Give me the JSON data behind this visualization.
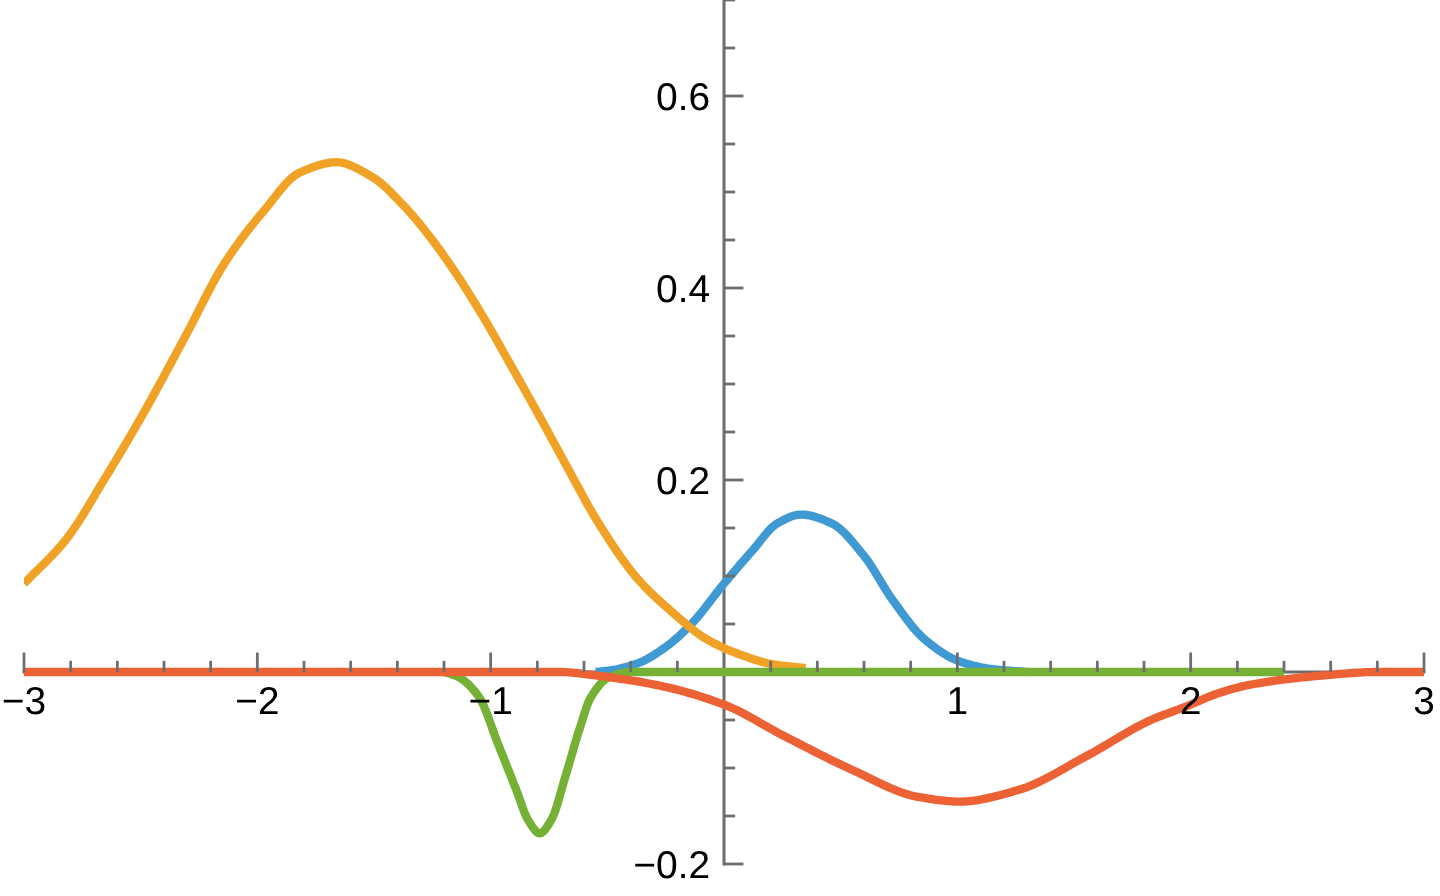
{
  "chart_data": {
    "type": "line",
    "xlim": [
      -3,
      3
    ],
    "ylim": [
      -0.2,
      0.7
    ],
    "xticks": [
      {
        "value": -3,
        "label": "−3"
      },
      {
        "value": -2.8,
        "label": null
      },
      {
        "value": -2.6,
        "label": null
      },
      {
        "value": -2.4,
        "label": null
      },
      {
        "value": -2.2,
        "label": null
      },
      {
        "value": -2,
        "label": "−2"
      },
      {
        "value": -1.8,
        "label": null
      },
      {
        "value": -1.6,
        "label": null
      },
      {
        "value": -1.4,
        "label": null
      },
      {
        "value": -1.2,
        "label": null
      },
      {
        "value": -1,
        "label": "−1"
      },
      {
        "value": -0.8,
        "label": null
      },
      {
        "value": -0.6,
        "label": null
      },
      {
        "value": -0.4,
        "label": null
      },
      {
        "value": -0.2,
        "label": null
      },
      {
        "value": 0.2,
        "label": null
      },
      {
        "value": 0.4,
        "label": null
      },
      {
        "value": 0.6,
        "label": null
      },
      {
        "value": 0.8,
        "label": null
      },
      1,
      {
        "value": 1.2,
        "label": null
      },
      {
        "value": 1.4,
        "label": null
      },
      {
        "value": 1.6,
        "label": null
      },
      {
        "value": 1.8,
        "label": null
      },
      2,
      {
        "value": 2.2,
        "label": null
      },
      {
        "value": 2.4,
        "label": null
      },
      {
        "value": 2.6,
        "label": null
      },
      {
        "value": 2.8,
        "label": null
      },
      3
    ],
    "yticks": [
      {
        "value": -0.2,
        "label": "−0.2"
      },
      {
        "value": -0.15,
        "label": null
      },
      {
        "value": -0.1,
        "label": null
      },
      {
        "value": -0.05,
        "label": null
      },
      {
        "value": 0.05,
        "label": null
      },
      {
        "value": 0.1,
        "label": null
      },
      {
        "value": 0.15,
        "label": null
      },
      0.2,
      {
        "value": 0.25,
        "label": null
      },
      {
        "value": 0.3,
        "label": null
      },
      {
        "value": 0.35,
        "label": null
      },
      0.4,
      {
        "value": 0.45,
        "label": null
      },
      {
        "value": 0.5,
        "label": null
      },
      {
        "value": 0.55,
        "label": null
      },
      0.6,
      {
        "value": 0.65,
        "label": null
      },
      {
        "value": 0.7,
        "label": null
      }
    ],
    "series": [
      {
        "color": "#3f9ad3",
        "x": [
          -0.55,
          -0.48,
          -0.37,
          -0.25,
          -0.14,
          0,
          0.12,
          0.23,
          0.33,
          0.46,
          0.6,
          0.72,
          0.86,
          1.01,
          1.15,
          1.3
        ],
        "values": [
          0,
          0.002,
          0.009,
          0.026,
          0.05,
          0.092,
          0.126,
          0.155,
          0.164,
          0.155,
          0.121,
          0.076,
          0.034,
          0.011,
          0.003,
          0
        ]
      },
      {
        "color": "#f0a226",
        "x": [
          -3,
          -2.82,
          -2.65,
          -2.48,
          -2.31,
          -2.14,
          -1.97,
          -1.82,
          -1.66,
          -1.51,
          -1.37,
          -1.25,
          -1.14,
          -1.02,
          -0.91,
          -0.79,
          -0.68,
          -0.54,
          -0.37,
          -0.22,
          -0.08,
          0.06,
          0.21,
          0.35
        ],
        "values": [
          0.092,
          0.138,
          0.203,
          0.273,
          0.349,
          0.426,
          0.481,
          0.52,
          0.531,
          0.516,
          0.485,
          0.45,
          0.412,
          0.365,
          0.318,
          0.266,
          0.217,
          0.156,
          0.097,
          0.062,
          0.035,
          0.019,
          0.008,
          0.004
        ]
      },
      {
        "color": "#74b134",
        "x": [
          -1.2,
          -1.14,
          -1.05,
          -0.97,
          -0.89,
          -0.84,
          -0.79,
          -0.74,
          -0.68,
          -0.62,
          -0.57,
          -0.49,
          -0.4,
          0,
          1,
          2,
          2.4
        ],
        "values": [
          0,
          -0.005,
          -0.026,
          -0.074,
          -0.123,
          -0.154,
          -0.168,
          -0.154,
          -0.109,
          -0.06,
          -0.026,
          -0.005,
          0,
          0,
          0,
          0,
          0
        ]
      },
      {
        "color": "#ec6234",
        "x": [
          -3,
          -1,
          -0.7,
          -0.57,
          -0.28,
          0,
          0.26,
          0.55,
          0.83,
          1.01,
          1.26,
          1.55,
          1.83,
          1.98,
          2.12,
          2.26,
          2.55,
          2.8,
          3
        ],
        "values": [
          0,
          0,
          0,
          -0.003,
          -0.014,
          -0.034,
          -0.067,
          -0.102,
          -0.13,
          -0.135,
          -0.123,
          -0.088,
          -0.05,
          -0.036,
          -0.022,
          -0.013,
          -0.004,
          0,
          0
        ]
      }
    ]
  }
}
